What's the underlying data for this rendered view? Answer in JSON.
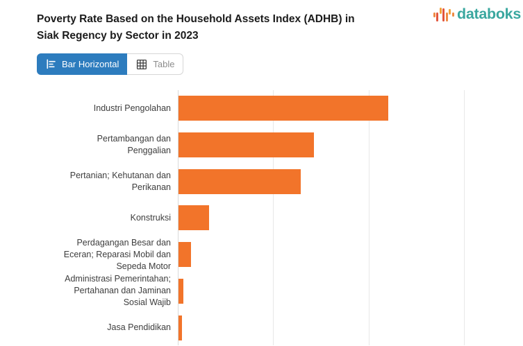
{
  "header": {
    "title_lines": [
      "Poverty Rate Based on the Household Assets Index (ADHB) in",
      "Siak Regency by Sector in 2023"
    ]
  },
  "logo": {
    "text": "databoks",
    "text_color": "#3aa79f",
    "icon_bars": [
      {
        "h": 7,
        "dy": 1,
        "c": "#ef8a44"
      },
      {
        "h": 13,
        "dy": 4,
        "c": "#e2553c"
      },
      {
        "h": 9,
        "dy": -5,
        "c": "#f3a33b"
      },
      {
        "h": 19,
        "dy": 1,
        "c": "#e2553c"
      },
      {
        "h": 13,
        "dy": 4,
        "c": "#ef8a44"
      },
      {
        "h": 8,
        "dy": -3,
        "c": "#f3a33b"
      },
      {
        "h": 6,
        "dy": 1,
        "c": "#ef8a44"
      }
    ]
  },
  "toolbar": {
    "bar_button_label": "Bar Horizontal",
    "table_button_label": "Table",
    "active_view": "Bar Horizontal",
    "active_color": "#2d7cbe"
  },
  "chart_data": {
    "type": "bar",
    "orientation": "horizontal",
    "title": "Poverty Rate Based on the Household Assets Index (ADHB) in Siak Regency by Sector in 2023",
    "categories": [
      "Industri Pengolahan",
      "Pertambangan dan Penggalian",
      "Pertanian; Kehutanan dan Perikanan",
      "Konstruksi",
      "Perdagangan Besar dan Eceran; Reparasi Mobil dan Sepeda Motor",
      "Administrasi Pemerintahan; Pertahanan dan Jaminan Sosial Wajib",
      "Jasa Pendidikan"
    ],
    "categories_display": [
      [
        "Industri Pengolahan"
      ],
      [
        "Pertambangan dan",
        "Penggalian"
      ],
      [
        "Pertanian; Kehutanan dan",
        "Perikanan"
      ],
      [
        "Konstruksi"
      ],
      [
        "Perdagangan Besar dan",
        "Eceran; Reparasi Mobil dan",
        "Sepeda Motor"
      ],
      [
        "Administrasi Pemerintahan;",
        "Pertahanan dan Jaminan",
        "Sosial Wajib"
      ],
      [
        "Jasa Pendidikan"
      ]
    ],
    "values": [
      2.2,
      1.42,
      1.28,
      0.32,
      0.13,
      0.05,
      0.04
    ],
    "value_note": "x-axis tick labels are cropped out of the screenshot; values estimated in gridline units (1 unit = one gridline spacing)",
    "xlim": [
      0,
      3.62
    ],
    "x_gridlines": [
      1,
      2,
      3
    ],
    "bar_color": "#f2742a",
    "grid": true,
    "legend": false,
    "xlabel": "",
    "ylabel": ""
  }
}
